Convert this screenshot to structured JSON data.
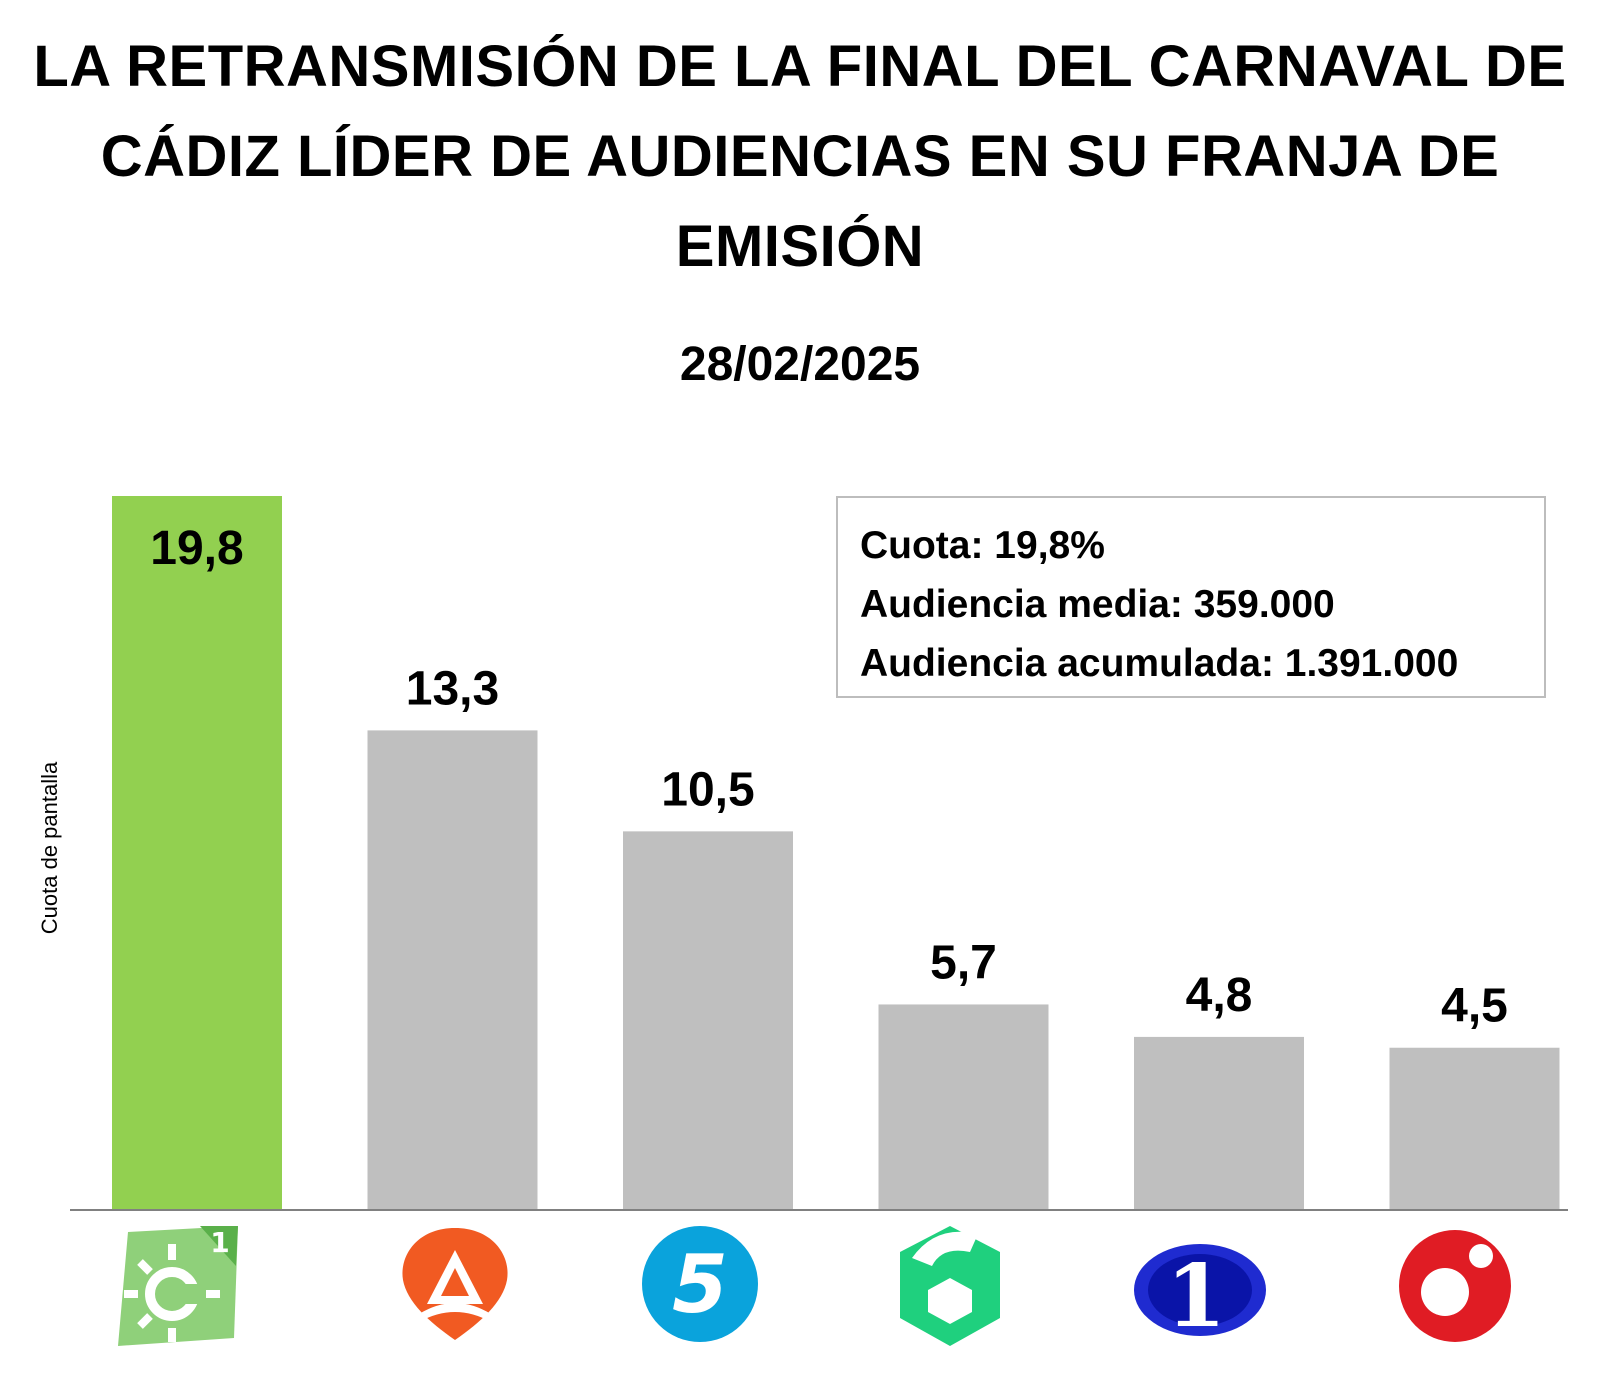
{
  "title": "LA RETRANSMISIÓN DE LA FINAL DEL CARNAVAL DE CÁDIZ LÍDER DE AUDIENCIAS EN SU FRANJA DE EMISIÓN",
  "subtitle": "28/02/2025",
  "info_box": {
    "cuota": "Cuota: 19,8%",
    "audiencia_media": "Audiencia media: 359.000",
    "audiencia_acumulada": "Audiencia acumulada: 1.391.000"
  },
  "logos": [
    {
      "name": "canal-sur-1-icon",
      "glyph": "1"
    },
    {
      "name": "antena-3-icon",
      "glyph": ""
    },
    {
      "name": "telecinco-icon",
      "glyph": "5"
    },
    {
      "name": "la-sexta-icon",
      "glyph": "6"
    },
    {
      "name": "la-1-icon",
      "glyph": "1"
    },
    {
      "name": "cuatro-icon",
      "glyph": ""
    }
  ],
  "colors": {
    "highlight": "#92d050",
    "bar": "#bfbfbf",
    "axis": "#808080"
  },
  "chart_data": {
    "type": "bar",
    "ylabel": "Cuota de pantalla",
    "xlabel": "",
    "ylim": [
      0,
      19.8
    ],
    "grid": false,
    "values": [
      19.8,
      13.3,
      10.5,
      5.7,
      4.8,
      4.5
    ],
    "value_labels": [
      "19,8",
      "13,3",
      "10,5",
      "5,7",
      "4,8",
      "4,5"
    ],
    "highlighted_index": 0
  }
}
